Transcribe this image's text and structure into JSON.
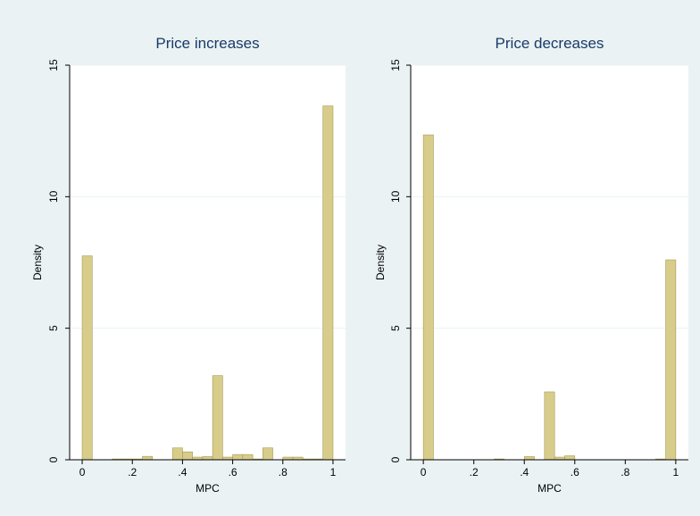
{
  "colors": {
    "outer_background": "#eaf2f3",
    "plot_background": "#ffffff",
    "bar_fill": "#d7cc8a",
    "bar_edge": "#a79a52",
    "title_color": "#1a3a6a"
  },
  "chart_data": [
    {
      "type": "bar",
      "title": "Price increases",
      "xlabel": "MPC",
      "ylabel": "Density",
      "xlim": [
        -0.05,
        1.05
      ],
      "ylim": [
        0,
        15
      ],
      "grid": true,
      "bin_width": 0.04,
      "x_ticks": [
        {
          "value": 0,
          "label": "0"
        },
        {
          "value": 0.2,
          "label": ".2"
        },
        {
          "value": 0.4,
          "label": ".4"
        },
        {
          "value": 0.6,
          "label": ".6"
        },
        {
          "value": 0.8,
          "label": ".8"
        },
        {
          "value": 1,
          "label": "1"
        }
      ],
      "y_ticks": [
        {
          "value": 0,
          "label": "0"
        },
        {
          "value": 5,
          "label": "5"
        },
        {
          "value": 10,
          "label": "10"
        },
        {
          "value": 15,
          "label": "15"
        }
      ],
      "bins": [
        {
          "x0": 0.0,
          "value": 7.75
        },
        {
          "x0": 0.12,
          "value": 0.03
        },
        {
          "x0": 0.16,
          "value": 0.03
        },
        {
          "x0": 0.2,
          "value": 0.03
        },
        {
          "x0": 0.24,
          "value": 0.13
        },
        {
          "x0": 0.36,
          "value": 0.45
        },
        {
          "x0": 0.4,
          "value": 0.3
        },
        {
          "x0": 0.44,
          "value": 0.1
        },
        {
          "x0": 0.48,
          "value": 0.12
        },
        {
          "x0": 0.52,
          "value": 3.2
        },
        {
          "x0": 0.56,
          "value": 0.1
        },
        {
          "x0": 0.6,
          "value": 0.2
        },
        {
          "x0": 0.64,
          "value": 0.2
        },
        {
          "x0": 0.68,
          "value": 0.03
        },
        {
          "x0": 0.72,
          "value": 0.45
        },
        {
          "x0": 0.8,
          "value": 0.1
        },
        {
          "x0": 0.84,
          "value": 0.1
        },
        {
          "x0": 0.88,
          "value": 0.03
        },
        {
          "x0": 0.92,
          "value": 0.03
        },
        {
          "x0": 0.96,
          "value": 13.45
        }
      ]
    },
    {
      "type": "bar",
      "title": "Price decreases",
      "xlabel": "MPC",
      "ylabel": "Density",
      "xlim": [
        -0.05,
        1.05
      ],
      "ylim": [
        0,
        15
      ],
      "grid": true,
      "bin_width": 0.04,
      "x_ticks": [
        {
          "value": 0,
          "label": "0"
        },
        {
          "value": 0.2,
          "label": ".2"
        },
        {
          "value": 0.4,
          "label": ".4"
        },
        {
          "value": 0.6,
          "label": ".6"
        },
        {
          "value": 0.8,
          "label": ".8"
        },
        {
          "value": 1,
          "label": "1"
        }
      ],
      "y_ticks": [
        {
          "value": 0,
          "label": "0"
        },
        {
          "value": 5,
          "label": "5"
        },
        {
          "value": 10,
          "label": "10"
        },
        {
          "value": 15,
          "label": "15"
        }
      ],
      "bins": [
        {
          "x0": 0.0,
          "value": 12.35
        },
        {
          "x0": 0.28,
          "value": 0.03
        },
        {
          "x0": 0.4,
          "value": 0.12
        },
        {
          "x0": 0.48,
          "value": 2.58
        },
        {
          "x0": 0.52,
          "value": 0.1
        },
        {
          "x0": 0.56,
          "value": 0.15
        },
        {
          "x0": 0.92,
          "value": 0.03
        },
        {
          "x0": 0.96,
          "value": 7.6
        }
      ]
    }
  ]
}
